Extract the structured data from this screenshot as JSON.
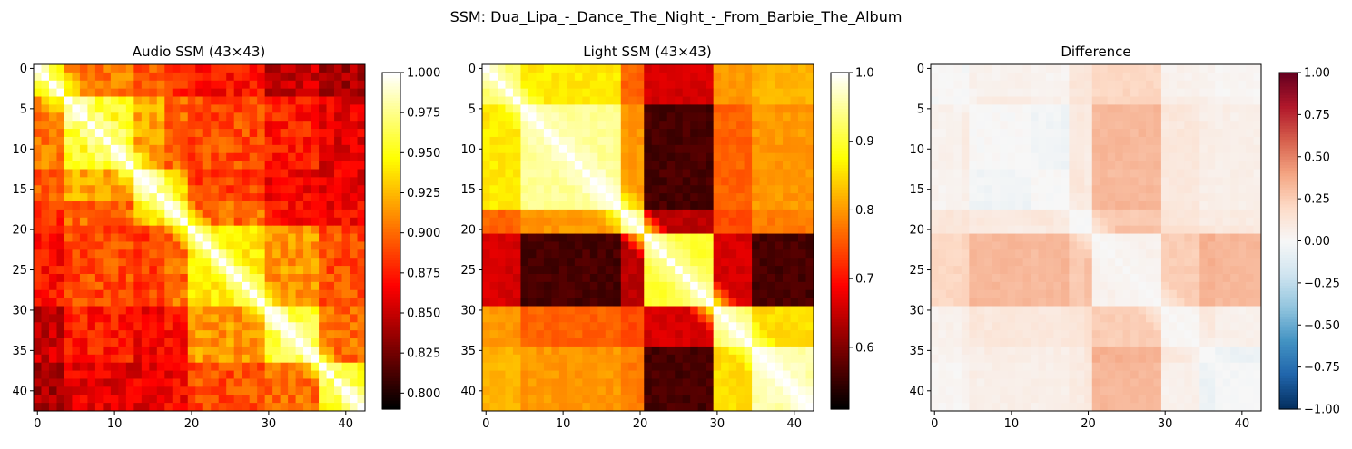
{
  "figure": {
    "suptitle": "SSM: Dua_Lipa_-_Dance_The_Night_-_From_Barbie_The_Album"
  },
  "chart_data": [
    {
      "type": "heatmap",
      "title": "Audio SSM (43×43)",
      "size": 43,
      "colormap": "hot",
      "vmin": 0.79,
      "vmax": 1.0,
      "x_ticks": [
        0,
        10,
        20,
        30,
        40
      ],
      "y_ticks": [
        0,
        5,
        10,
        15,
        20,
        25,
        30,
        35,
        40
      ],
      "colorbar_ticks": [
        0.8,
        0.825,
        0.85,
        0.875,
        0.9,
        0.925,
        0.95,
        0.975,
        1.0
      ],
      "colorbar_tick_labels": [
        "0.800",
        "0.825",
        "0.850",
        "0.875",
        "0.900",
        "0.925",
        "0.950",
        "0.975",
        "1.000"
      ],
      "section_boundaries": [
        0,
        4,
        13,
        17,
        20,
        30,
        37,
        43
      ],
      "section_means": [
        [
          0.935,
          0.905,
          0.895,
          0.88,
          0.87,
          0.85,
          0.84
        ],
        [
          0.905,
          0.955,
          0.92,
          0.9,
          0.89,
          0.875,
          0.86
        ],
        [
          0.895,
          0.92,
          0.96,
          0.93,
          0.885,
          0.865,
          0.86
        ],
        [
          0.88,
          0.9,
          0.93,
          0.955,
          0.9,
          0.87,
          0.865
        ],
        [
          0.87,
          0.89,
          0.885,
          0.9,
          0.94,
          0.915,
          0.89
        ],
        [
          0.85,
          0.875,
          0.865,
          0.87,
          0.915,
          0.955,
          0.9
        ],
        [
          0.84,
          0.86,
          0.86,
          0.865,
          0.89,
          0.9,
          0.945
        ]
      ]
    },
    {
      "type": "heatmap",
      "title": "Light SSM (43×43)",
      "size": 43,
      "colormap": "hot",
      "vmin": 0.51,
      "vmax": 1.0,
      "x_ticks": [
        0,
        10,
        20,
        30,
        40
      ],
      "y_ticks": [
        0,
        5,
        10,
        15,
        20,
        25,
        30,
        35,
        40
      ],
      "colorbar_ticks": [
        0.6,
        0.7,
        0.8,
        0.9,
        1.0
      ],
      "colorbar_tick_labels": [
        "0.6",
        "0.7",
        "0.8",
        "0.9",
        "1.0"
      ],
      "section_boundaries": [
        0,
        5,
        18,
        21,
        30,
        35,
        43
      ],
      "section_means": [
        [
          0.92,
          0.86,
          0.76,
          0.66,
          0.8,
          0.82
        ],
        [
          0.86,
          0.95,
          0.8,
          0.56,
          0.76,
          0.8
        ],
        [
          0.76,
          0.8,
          0.92,
          0.64,
          0.74,
          0.78
        ],
        [
          0.66,
          0.56,
          0.64,
          0.9,
          0.66,
          0.56
        ],
        [
          0.8,
          0.76,
          0.74,
          0.66,
          0.93,
          0.85
        ],
        [
          0.82,
          0.8,
          0.78,
          0.56,
          0.85,
          0.96
        ]
      ]
    },
    {
      "type": "heatmap",
      "title": "Difference",
      "size": 43,
      "colormap": "RdBu_r",
      "vmin": -1.0,
      "vmax": 1.0,
      "x_ticks": [
        0,
        10,
        20,
        30,
        40
      ],
      "y_ticks": [
        0,
        5,
        10,
        15,
        20,
        25,
        30,
        35,
        40
      ],
      "colorbar_ticks": [
        -1.0,
        -0.75,
        -0.5,
        -0.25,
        0.0,
        0.25,
        0.5,
        0.75,
        1.0
      ],
      "colorbar_tick_labels": [
        "−1.00",
        "−0.75",
        "−0.50",
        "−0.25",
        "0.00",
        "0.25",
        "0.50",
        "0.75",
        "1.00"
      ],
      "definition": "Audio SSM minus Light SSM"
    }
  ]
}
